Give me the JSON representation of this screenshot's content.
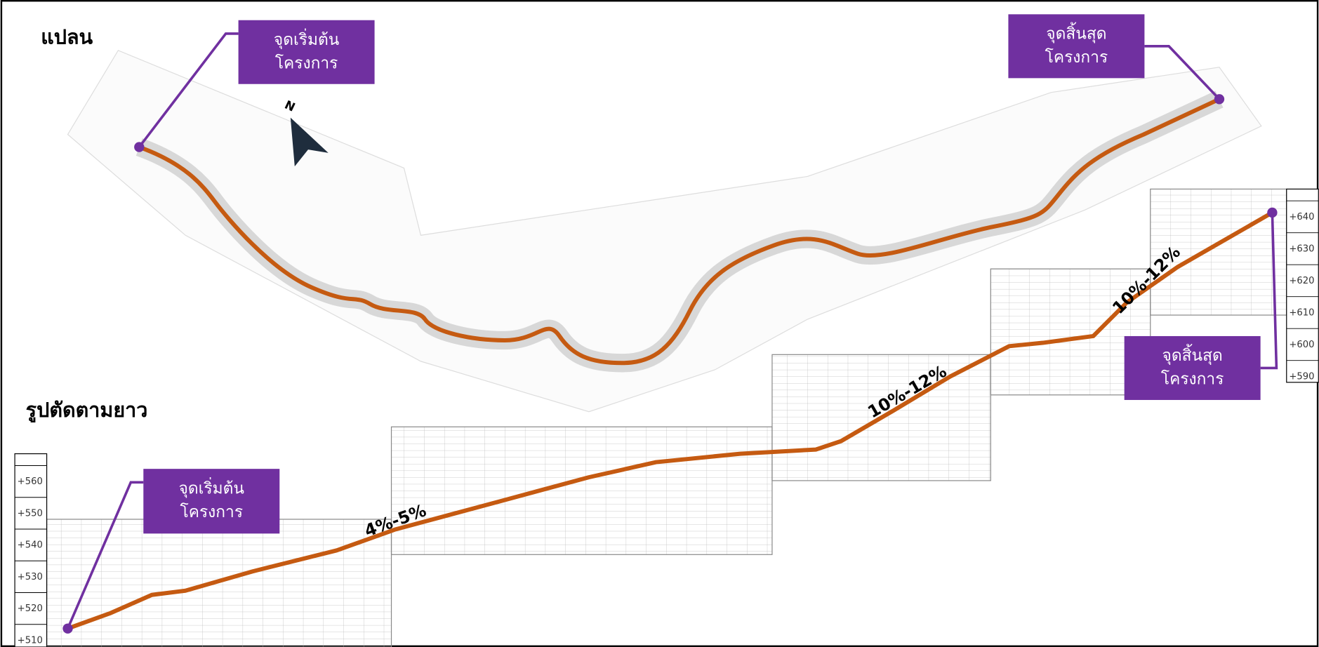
{
  "plan": {
    "title": "แปลน",
    "north": "N",
    "start_label": [
      "จุดเริ่มต้น",
      "โครงการ"
    ],
    "end_label": [
      "จุดสิ้นสุด",
      "โครงการ"
    ]
  },
  "profile": {
    "title": "รูปตัดตามยาว",
    "start_label": [
      "จุดเริ่มต้น",
      "โครงการ"
    ],
    "end_label": [
      "จุดสิ้นสุด",
      "โครงการ"
    ],
    "slopes": [
      "4%-5%",
      "10%-12%",
      "10%-12%"
    ],
    "left_scale": [
      "+560",
      "+550",
      "+540",
      "+530",
      "+520",
      "+510"
    ],
    "right_scale": [
      "+640",
      "+630",
      "+620",
      "+610",
      "+600",
      "+590"
    ]
  }
}
